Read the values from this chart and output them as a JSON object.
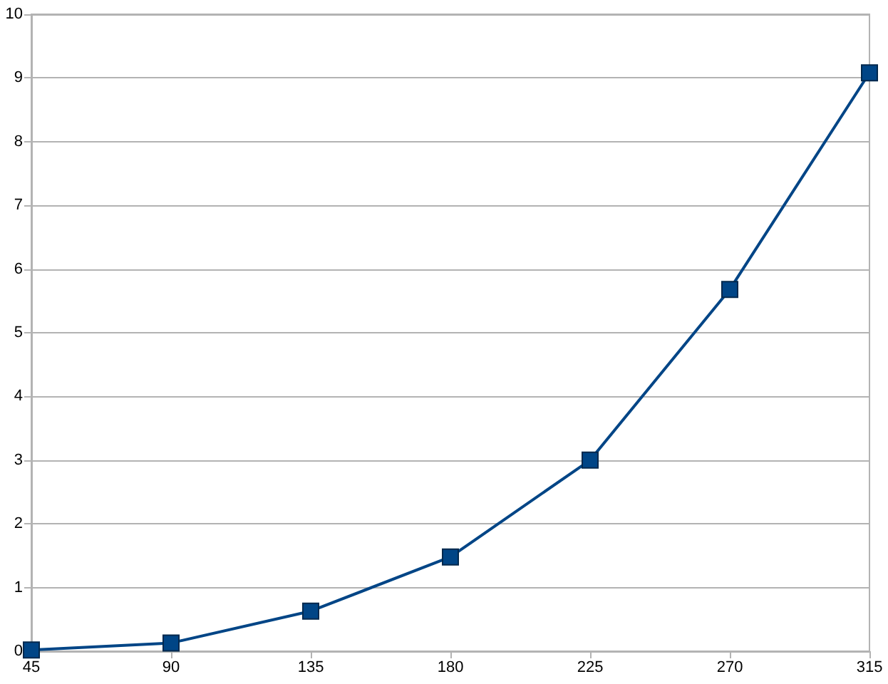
{
  "chart_data": {
    "type": "line",
    "x": [
      45,
      90,
      135,
      180,
      225,
      270,
      315
    ],
    "series": [
      {
        "color": "#004586",
        "values": [
          0.02,
          0.13,
          0.63,
          1.48,
          3.0,
          5.68,
          9.08
        ]
      }
    ],
    "xlim": [
      45,
      315
    ],
    "xticks": [
      45,
      90,
      135,
      180,
      225,
      270,
      315
    ],
    "ylim": [
      0,
      10
    ],
    "yticks": [
      0,
      1,
      2,
      3,
      4,
      5,
      6,
      7,
      8,
      9,
      10
    ],
    "grid": "y",
    "marker": "square",
    "line_style": "solid"
  }
}
